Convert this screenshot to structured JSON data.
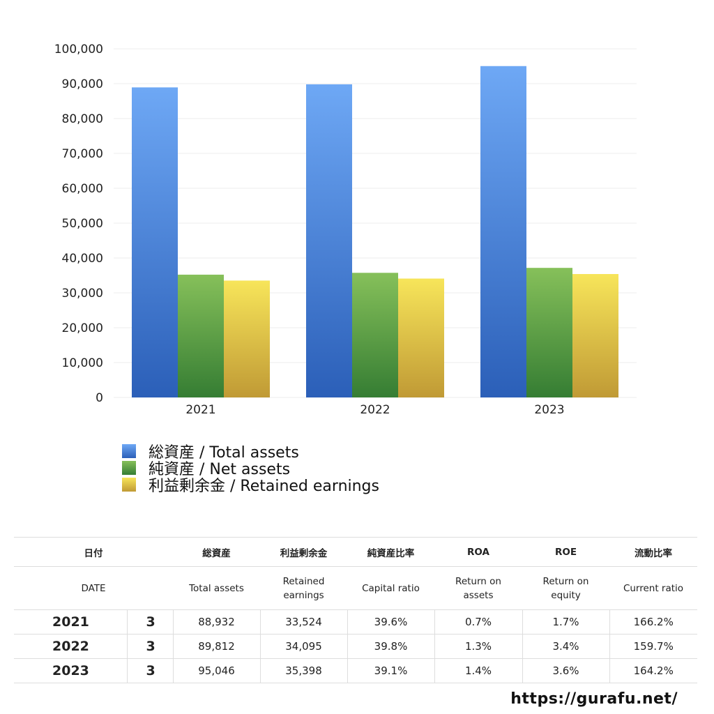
{
  "chart_data": {
    "type": "bar",
    "categories": [
      "2021",
      "2022",
      "2023"
    ],
    "series": [
      {
        "name": "総資産 / Total assets",
        "values": [
          88932,
          89812,
          95046
        ],
        "color_top": "#6ea8f5",
        "color_bottom": "#2b5fb8"
      },
      {
        "name": "純資産 / Net assets",
        "values": [
          35217,
          35745,
          37163
        ],
        "color_top": "#86c05a",
        "color_bottom": "#357d33"
      },
      {
        "name": "利益剰余金 / Retained earnings",
        "values": [
          33524,
          34095,
          35398
        ],
        "color_top": "#f7e55a",
        "color_bottom": "#c09a35"
      }
    ],
    "ylim": [
      0,
      100000
    ],
    "yticks": [
      "0",
      "10,000",
      "20,000",
      "30,000",
      "40,000",
      "50,000",
      "60,000",
      "70,000",
      "80,000",
      "90,000",
      "100,000"
    ],
    "grid": true,
    "legend": "bottom-left"
  },
  "table": {
    "header_jp": [
      "日付",
      "総資産",
      "利益剰余金",
      "純資産比率",
      "ROA",
      "ROE",
      "流動比率"
    ],
    "header_en": [
      "DATE",
      "Total assets",
      [
        "Retained",
        "earnings"
      ],
      "Capital ratio",
      [
        "Return on",
        "assets"
      ],
      [
        "Return on",
        "equity"
      ],
      "Current ratio"
    ],
    "rows": [
      [
        "2021",
        "3",
        "88,932",
        "33,524",
        "39.6%",
        "0.7%",
        "1.7%",
        "166.2%"
      ],
      [
        "2022",
        "3",
        "89,812",
        "34,095",
        "39.8%",
        "1.3%",
        "3.4%",
        "159.7%"
      ],
      [
        "2023",
        "3",
        "95,046",
        "35,398",
        "39.1%",
        "1.4%",
        "3.6%",
        "164.2%"
      ]
    ]
  },
  "footer": {
    "url": "https://gurafu.net/"
  }
}
